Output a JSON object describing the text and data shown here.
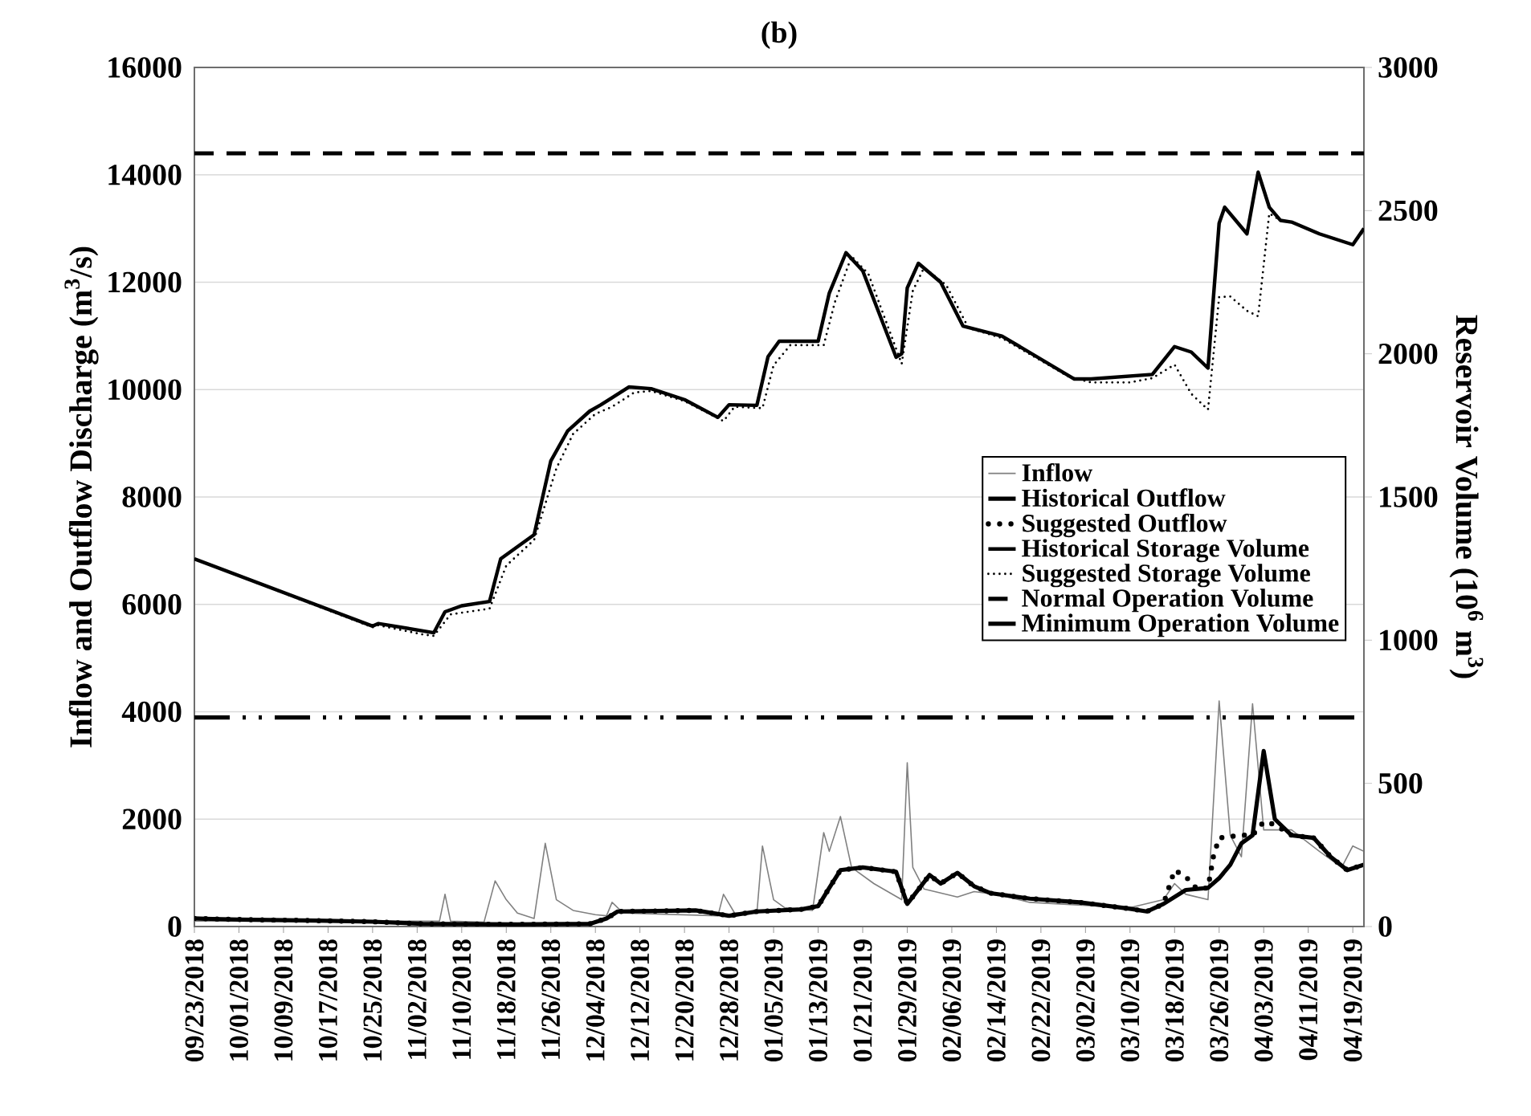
{
  "chart_data": {
    "type": "line",
    "title": "(b)",
    "ylabel": "Inflow and Outflow Discharge (m$^{3}$/s)",
    "y2label": "Reservoir Volume (10$^{6}$ m$^{3}$)",
    "xlim": [
      "2018-09-23",
      "2019-04-21"
    ],
    "xticks": [
      {
        "value": "2018-09-23",
        "label": "09/23/2018"
      },
      {
        "value": "2018-10-01",
        "label": "10/01/2018"
      },
      {
        "value": "2018-10-09",
        "label": "10/09/2018"
      },
      {
        "value": "2018-10-17",
        "label": "10/17/2018"
      },
      {
        "value": "2018-10-25",
        "label": "10/25/2018"
      },
      {
        "value": "2018-11-02",
        "label": "11/02/2018"
      },
      {
        "value": "2018-11-10",
        "label": "11/10/2018"
      },
      {
        "value": "2018-11-18",
        "label": "11/18/2018"
      },
      {
        "value": "2018-11-26",
        "label": "11/26/2018"
      },
      {
        "value": "2018-12-04",
        "label": "12/04/2018"
      },
      {
        "value": "2018-12-12",
        "label": "12/12/2018"
      },
      {
        "value": "2018-12-20",
        "label": "12/20/2018"
      },
      {
        "value": "2018-12-28",
        "label": "12/28/2018"
      },
      {
        "value": "2019-01-05",
        "label": "01/05/2019"
      },
      {
        "value": "2019-01-13",
        "label": "01/13/2019"
      },
      {
        "value": "2019-01-21",
        "label": "01/21/2019"
      },
      {
        "value": "2019-01-29",
        "label": "01/29/2019"
      },
      {
        "value": "2019-02-06",
        "label": "02/06/2019"
      },
      {
        "value": "2019-02-14",
        "label": "02/14/2019"
      },
      {
        "value": "2019-02-22",
        "label": "02/22/2019"
      },
      {
        "value": "2019-03-02",
        "label": "03/02/2019"
      },
      {
        "value": "2019-03-10",
        "label": "03/10/2019"
      },
      {
        "value": "2019-03-18",
        "label": "03/18/2019"
      },
      {
        "value": "2019-03-26",
        "label": "03/26/2019"
      },
      {
        "value": "2019-04-03",
        "label": "04/03/2019"
      },
      {
        "value": "2019-04-11",
        "label": "04/11/2019"
      },
      {
        "value": "2019-04-19",
        "label": "04/19/2019"
      }
    ],
    "ylim": [
      0,
      16000
    ],
    "yticks": [
      0,
      2000,
      4000,
      6000,
      8000,
      10000,
      12000,
      14000,
      16000
    ],
    "y2lim": [
      0,
      3000
    ],
    "y2ticks": [
      0,
      500,
      1000,
      1500,
      2000,
      2500,
      3000
    ],
    "grid": "y",
    "legend": "right",
    "series": [
      {
        "name": "Inflow",
        "color": "#808080",
        "line_style": "solid",
        "x": [
          "2018-09-23",
          "2018-11-06",
          "2018-11-07",
          "2018-11-08",
          "2018-11-14",
          "2018-11-16",
          "2018-11-18",
          "2018-11-20",
          "2018-11-23",
          "2018-11-25",
          "2018-11-27",
          "2018-11-30",
          "2018-12-04",
          "2018-12-06",
          "2018-12-07",
          "2018-12-09",
          "2018-12-26",
          "2018-12-27",
          "2018-12-29",
          "2019-01-02",
          "2019-01-03",
          "2019-01-05",
          "2019-01-07",
          "2019-01-12",
          "2019-01-14",
          "2019-01-15",
          "2019-01-17",
          "2019-01-19",
          "2019-01-23",
          "2019-01-28",
          "2019-01-29",
          "2019-01-30",
          "2019-02-01",
          "2019-02-07",
          "2019-02-10",
          "2019-02-14",
          "2019-02-20",
          "2019-03-10",
          "2019-03-16",
          "2019-03-18",
          "2019-03-20",
          "2019-03-24",
          "2019-03-26",
          "2019-03-28",
          "2019-03-30",
          "2019-04-01",
          "2019-04-03",
          "2019-04-08",
          "2019-04-13",
          "2019-04-17",
          "2019-04-19",
          "2019-04-21"
        ],
        "values": [
          100,
          100,
          600,
          100,
          80,
          850,
          500,
          250,
          150,
          1550,
          500,
          300,
          220,
          200,
          450,
          250,
          200,
          600,
          250,
          250,
          1500,
          500,
          350,
          300,
          1750,
          1400,
          2050,
          1100,
          800,
          500,
          3050,
          1100,
          700,
          550,
          650,
          600,
          450,
          350,
          500,
          800,
          600,
          500,
          4200,
          1700,
          1300,
          4150,
          1800,
          1800,
          1400,
          1100,
          1500,
          1400
        ]
      },
      {
        "name": "Historical Outflow",
        "color": "#000000",
        "line_style": "solid",
        "x": [
          "2018-09-23",
          "2018-10-01",
          "2018-10-15",
          "2018-10-25",
          "2018-11-03",
          "2018-11-20",
          "2018-12-03",
          "2018-12-06",
          "2018-12-08",
          "2018-12-15",
          "2018-12-22",
          "2018-12-28",
          "2019-01-02",
          "2019-01-10",
          "2019-01-13",
          "2019-01-15",
          "2019-01-17",
          "2019-01-21",
          "2019-01-27",
          "2019-01-29",
          "2019-02-02",
          "2019-02-04",
          "2019-02-07",
          "2019-02-10",
          "2019-02-13",
          "2019-02-20",
          "2019-03-01",
          "2019-03-10",
          "2019-03-13",
          "2019-03-16",
          "2019-03-20",
          "2019-03-24",
          "2019-03-26",
          "2019-03-28",
          "2019-03-30",
          "2019-04-01",
          "2019-04-03",
          "2019-04-05",
          "2019-04-08",
          "2019-04-12",
          "2019-04-15",
          "2019-04-18",
          "2019-04-21"
        ],
        "values": [
          150,
          130,
          110,
          90,
          50,
          40,
          50,
          150,
          280,
          290,
          300,
          200,
          280,
          320,
          380,
          720,
          1050,
          1100,
          1020,
          420,
          960,
          800,
          1000,
          750,
          620,
          520,
          450,
          330,
          280,
          420,
          680,
          720,
          900,
          1150,
          1550,
          1700,
          3270,
          2000,
          1700,
          1650,
          1300,
          1050,
          1150
        ]
      },
      {
        "name": "Suggested Outflow",
        "color": "#000000",
        "line_style": "dotted",
        "x": [
          "2018-09-23",
          "2018-10-01",
          "2018-10-15",
          "2018-10-25",
          "2018-11-03",
          "2018-11-20",
          "2018-12-03",
          "2018-12-06",
          "2018-12-08",
          "2018-12-15",
          "2018-12-22",
          "2018-12-28",
          "2019-01-02",
          "2019-01-10",
          "2019-01-13",
          "2019-01-15",
          "2019-01-17",
          "2019-01-21",
          "2019-01-27",
          "2019-01-29",
          "2019-02-02",
          "2019-02-04",
          "2019-02-07",
          "2019-02-10",
          "2019-02-13",
          "2019-02-20",
          "2019-03-01",
          "2019-03-10",
          "2019-03-13",
          "2019-03-16",
          "2019-03-18",
          "2019-03-20",
          "2019-03-22",
          "2019-03-24",
          "2019-03-25",
          "2019-03-26",
          "2019-03-30",
          "2019-04-01",
          "2019-04-03",
          "2019-04-05",
          "2019-04-08",
          "2019-04-12",
          "2019-04-15",
          "2019-04-18",
          "2019-04-21"
        ],
        "values": [
          150,
          130,
          110,
          90,
          50,
          40,
          50,
          150,
          280,
          290,
          300,
          200,
          280,
          320,
          380,
          720,
          1050,
          1100,
          1020,
          420,
          960,
          800,
          1000,
          750,
          620,
          520,
          450,
          330,
          280,
          420,
          1050,
          930,
          700,
          720,
          1320,
          1650,
          1700,
          1700,
          1950,
          1900,
          1700,
          1650,
          1300,
          1050,
          1150
        ]
      },
      {
        "name": "Historical Storage Volume",
        "color": "#000000",
        "line_style": "solid",
        "axis": "y2",
        "x": [
          "2018-09-23",
          "2018-10-25",
          "2018-10-26",
          "2018-11-05",
          "2018-11-07",
          "2018-11-10",
          "2018-11-15",
          "2018-11-17",
          "2018-11-23",
          "2018-11-26",
          "2018-11-29",
          "2018-12-03",
          "2018-12-05",
          "2018-12-10",
          "2018-12-14",
          "2018-12-20",
          "2018-12-26",
          "2018-12-28",
          "2019-01-02",
          "2019-01-04",
          "2019-01-06",
          "2019-01-13",
          "2019-01-15",
          "2019-01-18",
          "2019-01-21",
          "2019-01-27",
          "2019-01-28",
          "2019-01-29",
          "2019-01-31",
          "2019-02-04",
          "2019-02-08",
          "2019-02-15",
          "2019-02-28",
          "2019-03-03",
          "2019-03-14",
          "2019-03-18",
          "2019-03-21",
          "2019-03-24",
          "2019-03-26",
          "2019-03-27",
          "2019-03-31",
          "2019-04-02",
          "2019-04-04",
          "2019-04-06",
          "2019-04-08",
          "2019-04-13",
          "2019-04-19",
          "2019-04-21"
        ],
        "values": [
          1284,
          1049,
          1058,
          1026,
          1099,
          1120,
          1135,
          1284,
          1368,
          1626,
          1730,
          1800,
          1822,
          1884,
          1878,
          1840,
          1778,
          1822,
          1820,
          1990,
          2044,
          2044,
          2212,
          2353,
          2290,
          1988,
          2000,
          2230,
          2316,
          2250,
          2097,
          2062,
          1912,
          1912,
          1928,
          2025,
          2006,
          1950,
          2456,
          2512,
          2419,
          2634,
          2512,
          2466,
          2460,
          2419,
          2381,
          2438
        ]
      },
      {
        "name": "Suggested Storage Volume",
        "color": "#000000",
        "line_style": "dotted",
        "axis": "y2",
        "x": [
          "2018-09-23",
          "2018-10-25",
          "2018-10-26",
          "2018-11-03",
          "2018-11-05",
          "2018-11-08",
          "2018-11-15",
          "2018-11-18",
          "2018-11-23",
          "2018-11-27",
          "2018-11-30",
          "2018-12-04",
          "2018-12-07",
          "2018-12-11",
          "2018-12-14",
          "2018-12-20",
          "2018-12-27",
          "2018-12-29",
          "2019-01-03",
          "2019-01-05",
          "2019-01-08",
          "2019-01-14",
          "2019-01-16",
          "2019-01-19",
          "2019-01-22",
          "2019-01-28",
          "2019-01-30",
          "2019-02-01",
          "2019-02-05",
          "2019-02-09",
          "2019-02-15",
          "2019-02-27",
          "2019-03-03",
          "2019-03-10",
          "2019-03-14",
          "2019-03-18",
          "2019-03-21",
          "2019-03-24",
          "2019-03-26",
          "2019-03-28",
          "2019-03-31",
          "2019-04-02",
          "2019-04-04",
          "2019-04-06",
          "2019-04-08",
          "2019-04-13",
          "2019-04-19",
          "2019-04-21"
        ],
        "values": [
          1284,
          1045,
          1052,
          1020,
          1015,
          1090,
          1110,
          1260,
          1350,
          1600,
          1720,
          1790,
          1815,
          1865,
          1870,
          1835,
          1765,
          1815,
          1810,
          1960,
          2030,
          2030,
          2180,
          2340,
          2280,
          1965,
          2220,
          2300,
          2240,
          2090,
          2055,
          1920,
          1900,
          1900,
          1915,
          1962,
          1860,
          1805,
          2198,
          2200,
          2150,
          2131,
          2490,
          2466,
          2460,
          2419,
          2381,
          2430
        ]
      }
    ],
    "ref_lines": [
      {
        "axis": "y2",
        "value": 2700,
        "label": "Normal Operation Volume",
        "color": "#000000",
        "line_style": "dashed"
      },
      {
        "axis": "y2",
        "value": 730,
        "label": "Minimum Operation Volume",
        "color": "#000000",
        "line_style": "dashdotdotted"
      }
    ]
  }
}
